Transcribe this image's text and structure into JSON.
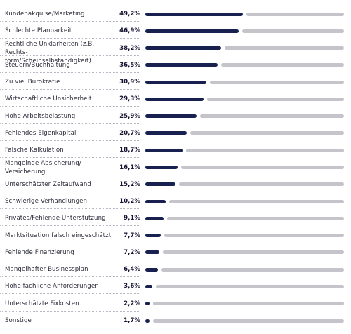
{
  "chart_data": {
    "type": "bar",
    "orientation": "horizontal",
    "colors": {
      "value_bar": "#17204f",
      "remainder_bar": "#c4c4ca"
    },
    "rows": [
      {
        "label": [
          "Kundenakquise/Marketing"
        ],
        "value": 49.2,
        "value_label": "49,2%"
      },
      {
        "label": [
          "Schlechte Planbarkeit"
        ],
        "value": 46.9,
        "value_label": "46,9%"
      },
      {
        "label": [
          "Rechtliche Unklarheiten (z.B. Rechts-",
          "form/Scheinselbständigkeit)"
        ],
        "value": 38.2,
        "value_label": "38,2%"
      },
      {
        "label": [
          "Steuern/Buchhaltung"
        ],
        "value": 36.5,
        "value_label": "36,5%"
      },
      {
        "label": [
          "Zu viel Bürokratie"
        ],
        "value": 30.9,
        "value_label": "30,9%"
      },
      {
        "label": [
          "Wirtschaftliche Unsicherheit"
        ],
        "value": 29.3,
        "value_label": "29,3%"
      },
      {
        "label": [
          "Hohe Arbeitsbelastung"
        ],
        "value": 25.9,
        "value_label": "25,9%"
      },
      {
        "label": [
          "Fehlendes Eigenkapital"
        ],
        "value": 20.7,
        "value_label": "20,7%"
      },
      {
        "label": [
          "Falsche Kalkulation"
        ],
        "value": 18.7,
        "value_label": "18,7%"
      },
      {
        "label": [
          "Mangelnde Absicherung/",
          "Versicherung"
        ],
        "value": 16.1,
        "value_label": "16,1%"
      },
      {
        "label": [
          "Unterschätzter Zeitaufwand"
        ],
        "value": 15.2,
        "value_label": "15,2%"
      },
      {
        "label": [
          "Schwierige Verhandlungen"
        ],
        "value": 10.2,
        "value_label": "10,2%"
      },
      {
        "label": [
          "Privates/Fehlende Unterstützung"
        ],
        "value": 9.1,
        "value_label": "9,1%"
      },
      {
        "label": [
          "Marktsituation falsch eingeschätzt"
        ],
        "value": 7.7,
        "value_label": "7,7%"
      },
      {
        "label": [
          "Fehlende Finanzierung"
        ],
        "value": 7.2,
        "value_label": "7,2%"
      },
      {
        "label": [
          "Mangelhafter Businessplan"
        ],
        "value": 6.4,
        "value_label": "6,4%"
      },
      {
        "label": [
          "Hohe fachliche Anforderungen"
        ],
        "value": 3.6,
        "value_label": "3,6%"
      },
      {
        "label": [
          "Unterschätzte Fixkosten"
        ],
        "value": 2.2,
        "value_label": "2,2%"
      },
      {
        "label": [
          "Sonstige"
        ],
        "value": 1.7,
        "value_label": "1,7%"
      }
    ],
    "xlim": [
      0,
      100
    ]
  }
}
